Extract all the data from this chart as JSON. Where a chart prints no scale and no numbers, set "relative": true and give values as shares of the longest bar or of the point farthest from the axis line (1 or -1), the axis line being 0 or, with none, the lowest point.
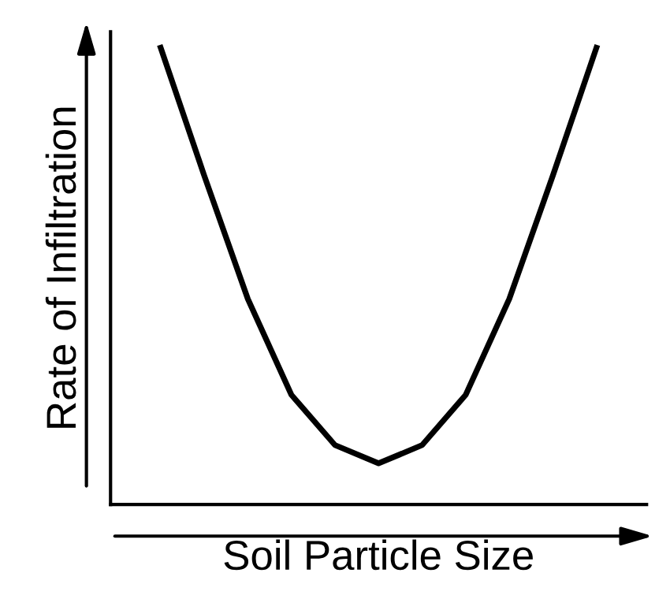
{
  "chart_data": {
    "type": "line",
    "relative": true,
    "xlabel": "Soil Particle Size",
    "ylabel": "Rate of Infiltration",
    "categories": [
      null,
      null,
      null,
      null,
      null,
      null,
      null,
      null,
      null,
      null,
      null
    ],
    "series": [
      {
        "color": "#000000",
        "values": [
          1,
          0.72,
          0.45,
          0.24,
          0.13,
          0.09,
          0.13,
          0.24,
          0.45,
          0.72,
          1
        ]
      }
    ],
    "marker": "none",
    "line_style": "solid"
  }
}
